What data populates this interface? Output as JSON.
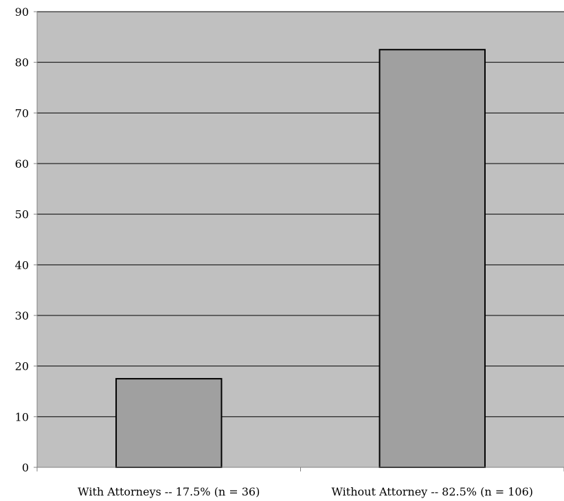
{
  "chart_data": {
    "type": "bar",
    "categories": [
      "With Attorneys -- 17.5% (n = 36)",
      "Without Attorney -- 82.5% (n = 106)"
    ],
    "values": [
      17.5,
      82.5
    ],
    "title": "",
    "xlabel": "",
    "ylabel": "",
    "ylim": [
      0,
      90
    ],
    "yticks": [
      0,
      10,
      20,
      30,
      40,
      50,
      60,
      70,
      80,
      90
    ],
    "grid": true,
    "legend": "none"
  },
  "colors": {
    "plot_background": "#c0c0c0",
    "bar_fill": "#a0a0a0",
    "bar_stroke": "#000000",
    "gridline": "#000000",
    "axis": "#808080",
    "text": "#000000",
    "page_background": "#ffffff"
  }
}
